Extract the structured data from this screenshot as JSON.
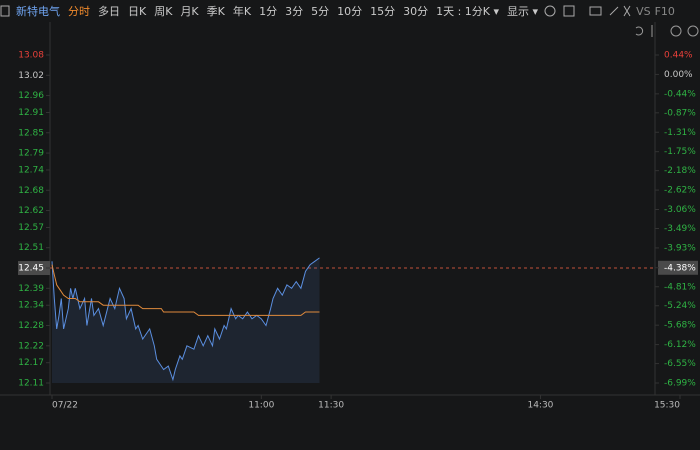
{
  "toolbar": {
    "stock": "新特电气",
    "periods": [
      "分时",
      "多日",
      "日K",
      "周K",
      "月K",
      "季K",
      "年K",
      "1分",
      "3分",
      "5分",
      "10分",
      "15分",
      "30分"
    ],
    "active_period": "分时",
    "range": "1天 : 1分K",
    "display": "显示",
    "vs": "VS",
    "f10": "F10"
  },
  "chart_data": {
    "type": "line",
    "x": [
      0,
      1,
      2,
      3,
      4,
      5,
      7,
      8,
      9,
      10,
      12,
      14,
      15,
      17,
      18,
      20,
      22,
      25,
      27,
      29,
      31,
      32,
      34,
      36,
      37,
      39,
      42,
      44,
      45,
      47,
      48,
      50,
      52,
      53,
      55,
      56,
      58,
      61,
      63,
      65,
      67,
      69,
      70,
      72,
      74,
      75,
      77,
      79,
      80,
      82,
      84,
      86,
      88,
      90,
      92,
      94,
      95,
      97,
      99,
      101,
      103,
      105,
      107,
      109,
      111,
      113,
      115
    ],
    "series": [
      {
        "color": "#5b8fe0",
        "fill": true,
        "values": [
          12.47,
          12.36,
          12.27,
          12.31,
          12.36,
          12.27,
          12.33,
          12.39,
          12.36,
          12.39,
          12.33,
          12.36,
          12.28,
          12.36,
          12.31,
          12.33,
          12.28,
          12.36,
          12.33,
          12.39,
          12.36,
          12.3,
          12.33,
          12.27,
          12.28,
          12.24,
          12.27,
          12.22,
          12.18,
          12.16,
          12.15,
          12.16,
          12.12,
          12.15,
          12.19,
          12.18,
          12.22,
          12.21,
          12.25,
          12.22,
          12.25,
          12.22,
          12.27,
          12.24,
          12.28,
          12.27,
          12.33,
          12.3,
          12.31,
          12.3,
          12.32,
          12.3,
          12.31,
          12.3,
          12.28,
          12.33,
          12.36,
          12.39,
          12.37,
          12.4,
          12.39,
          12.41,
          12.39,
          12.44,
          12.46,
          12.47,
          12.48
        ]
      },
      {
        "color": "#e08a3c",
        "fill": false,
        "values": [
          12.46,
          12.43,
          12.4,
          12.39,
          12.38,
          12.37,
          12.36,
          12.36,
          12.36,
          12.36,
          12.35,
          12.35,
          12.35,
          12.35,
          12.35,
          12.35,
          12.34,
          12.34,
          12.34,
          12.34,
          12.34,
          12.34,
          12.34,
          12.34,
          12.34,
          12.33,
          12.33,
          12.33,
          12.33,
          12.33,
          12.32,
          12.32,
          12.32,
          12.32,
          12.32,
          12.32,
          12.32,
          12.32,
          12.31,
          12.31,
          12.31,
          12.31,
          12.31,
          12.31,
          12.31,
          12.31,
          12.31,
          12.31,
          12.31,
          12.31,
          12.31,
          12.31,
          12.31,
          12.31,
          12.31,
          12.31,
          12.31,
          12.31,
          12.31,
          12.31,
          12.31,
          12.31,
          12.31,
          12.32,
          12.32,
          12.32,
          12.32
        ]
      }
    ],
    "xlim": [
      0,
      270
    ],
    "xticks": [
      {
        "value": 0,
        "label": "07/22"
      },
      {
        "value": 90,
        "label": "11:00"
      },
      {
        "value": 120,
        "label": "11:30"
      },
      {
        "value": 210,
        "label": "14:30"
      },
      {
        "value": 270,
        "label": "15:30"
      }
    ],
    "ylim": [
      12.11,
      13.08
    ],
    "yticks": [
      13.08,
      13.02,
      12.96,
      12.91,
      12.85,
      12.79,
      12.74,
      12.68,
      12.62,
      12.57,
      12.51,
      12.45,
      12.39,
      12.34,
      12.28,
      12.22,
      12.17,
      12.11
    ],
    "y2lim": [
      -6.99,
      0.44
    ],
    "y2ticks": [
      {
        "value": 0.44,
        "label": "0.44%"
      },
      {
        "value": 0,
        "label": "0.00%"
      },
      {
        "value": -0.44,
        "label": "-0.44%"
      },
      {
        "value": -0.87,
        "label": "-0.87%"
      },
      {
        "value": -1.31,
        "label": "-1.31%"
      },
      {
        "value": -1.75,
        "label": "-1.75%"
      },
      {
        "value": -2.18,
        "label": "-2.18%"
      },
      {
        "value": -2.62,
        "label": "-2.62%"
      },
      {
        "value": -3.06,
        "label": "-3.06%"
      },
      {
        "value": -3.49,
        "label": "-3.49%"
      },
      {
        "value": -3.93,
        "label": "-3.93%"
      },
      {
        "value": -4.38,
        "label": "-4.38%"
      },
      {
        "value": -4.81,
        "label": "-4.81%"
      },
      {
        "value": -5.24,
        "label": "-5.24%"
      },
      {
        "value": -5.68,
        "label": "-5.68%"
      },
      {
        "value": -6.12,
        "label": "-6.12%"
      },
      {
        "value": -6.55,
        "label": "-6.55%"
      },
      {
        "value": -6.99,
        "label": "-6.99%"
      }
    ],
    "last_price": 12.45,
    "up_color": "#e8403a",
    "down_color": "#2fb344",
    "flat_color": "#c8c8c8"
  }
}
